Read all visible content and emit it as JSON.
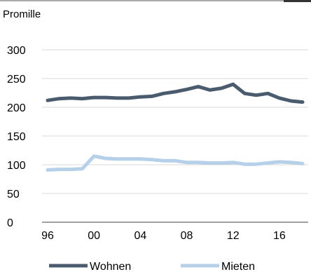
{
  "chart_data": {
    "type": "line",
    "ylabel": "Promille",
    "ylim": [
      0,
      300
    ],
    "yticks": [
      0,
      50,
      100,
      150,
      200,
      250,
      300
    ],
    "xlim": [
      1996,
      2018
    ],
    "xtick_labels": [
      "96",
      "00",
      "04",
      "08",
      "12",
      "16"
    ],
    "xtick_values": [
      1996,
      2000,
      2004,
      2008,
      2012,
      2016
    ],
    "grid": "horizontal",
    "legend_position": "bottom",
    "x": [
      1996,
      1997,
      1998,
      1999,
      2000,
      2001,
      2002,
      2003,
      2004,
      2005,
      2006,
      2007,
      2008,
      2009,
      2010,
      2011,
      2012,
      2013,
      2014,
      2015,
      2016,
      2017,
      2018
    ],
    "series": [
      {
        "name": "Wohnen",
        "color": "#4a5b6e",
        "values": [
          212,
          215,
          216,
          215,
          217,
          217,
          216,
          216,
          218,
          219,
          224,
          227,
          231,
          236,
          230,
          233,
          240,
          224,
          221,
          224,
          216,
          211,
          209
        ]
      },
      {
        "name": "Mieten",
        "color": "#b6d0ea",
        "values": [
          91,
          92,
          92,
          93,
          115,
          111,
          110,
          110,
          110,
          109,
          107,
          107,
          104,
          104,
          103,
          103,
          104,
          101,
          101,
          103,
          105,
          104,
          102
        ]
      }
    ]
  }
}
